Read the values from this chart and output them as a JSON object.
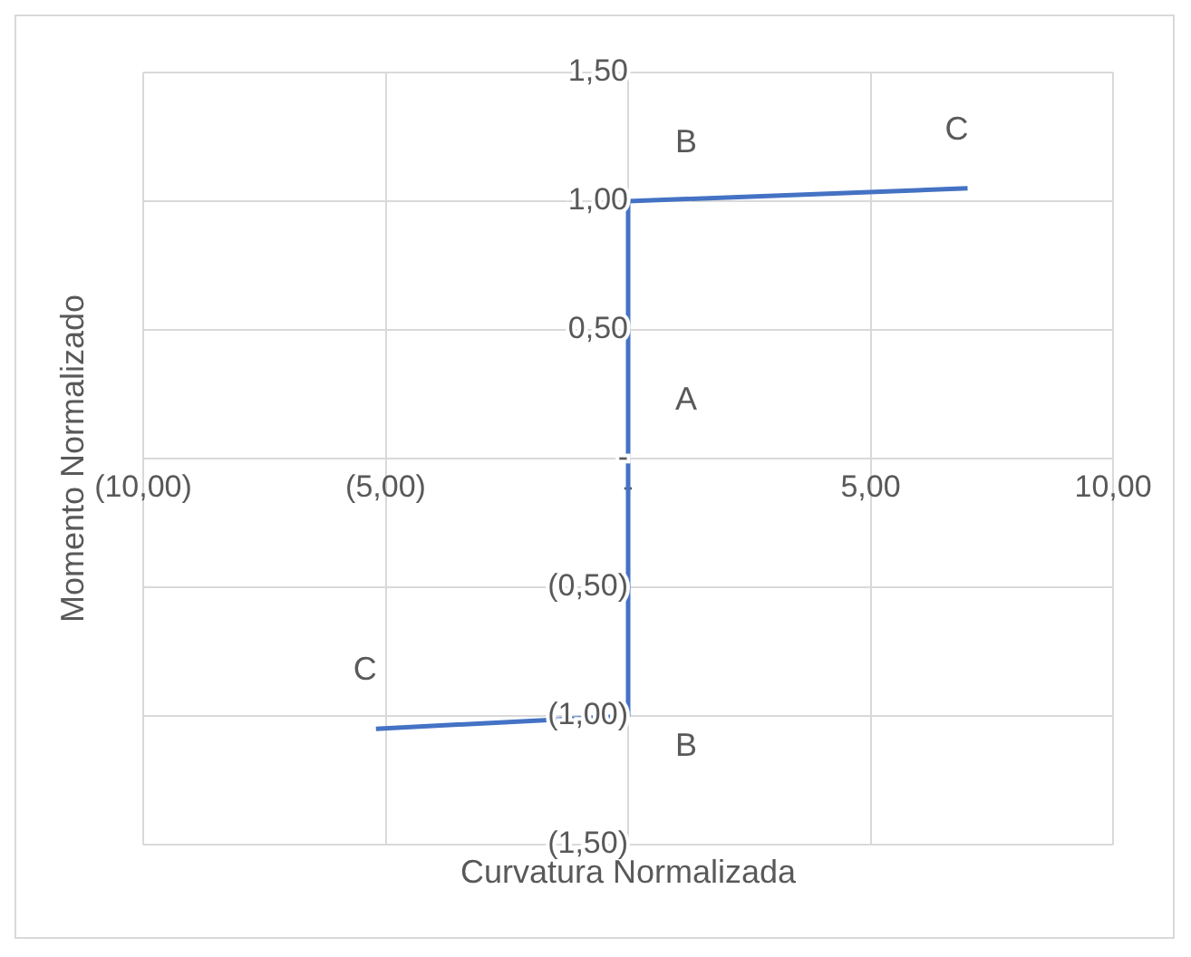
{
  "chart_data": {
    "type": "line",
    "xlabel": "Curvatura Normalizada",
    "ylabel": "Momento Normalizado",
    "series": [
      {
        "color": "#4472c4",
        "x": [
          -5.2,
          0,
          0,
          7
        ],
        "values": [
          -1.05,
          -1,
          1,
          1.05
        ]
      }
    ],
    "xlim": [
      -10,
      10
    ],
    "ylim": [
      -1.5,
      1.5
    ],
    "xticks": [
      {
        "value": -10,
        "label": "(10,00)"
      },
      {
        "value": -5,
        "label": "(5,00)"
      },
      {
        "value": 0,
        "label": "-"
      },
      {
        "value": 5,
        "label": "5,00"
      },
      {
        "value": 10,
        "label": "10,00"
      }
    ],
    "yticks": [
      {
        "value": -1.5,
        "label": "(1,50)"
      },
      {
        "value": -1,
        "label": "(1,00)"
      },
      {
        "value": -0.5,
        "label": "(0,50)"
      },
      {
        "value": 0,
        "label": "-"
      },
      {
        "value": 0.5,
        "label": "0,50"
      },
      {
        "value": 1,
        "label": "1,00"
      },
      {
        "value": 1.5,
        "label": "1,50"
      }
    ],
    "annotations": [
      {
        "text": "A",
        "x": 0,
        "y": 0
      },
      {
        "text": "B",
        "x": 0,
        "y": 1
      },
      {
        "text": "B",
        "x": 0,
        "y": -1
      },
      {
        "text": "C",
        "x": -5.2,
        "y": -1.05
      },
      {
        "text": "C",
        "x": 7,
        "y": 1.05
      }
    ],
    "grid": true,
    "legend": false,
    "marker": "none",
    "line_style": "solid"
  }
}
